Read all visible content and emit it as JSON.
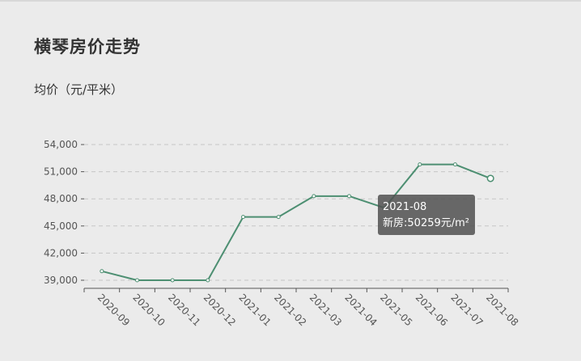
{
  "header": {
    "title": "横琴房价走势",
    "subtitle": "均价（元/平米）"
  },
  "tooltip": {
    "period": "2021-08",
    "series_label": "新房",
    "value_text": "50259",
    "unit": "元/m²"
  },
  "colors": {
    "line": "#4d8f72",
    "grid": "#c6c6c6",
    "axis": "#555555"
  },
  "chart_data": {
    "type": "line",
    "title": "横琴房价走势",
    "ylabel": "均价（元/平米）",
    "xlabel": "",
    "categories": [
      "2020-09",
      "2020-10",
      "2020-11",
      "2020-12",
      "2021-01",
      "2021-02",
      "2021-03",
      "2021-04",
      "2021-05",
      "2021-06",
      "2021-07",
      "2021-08"
    ],
    "series": [
      {
        "name": "新房",
        "values": [
          40000,
          39000,
          39000,
          39000,
          46000,
          46000,
          48300,
          48300,
          47000,
          51800,
          51800,
          50259
        ]
      }
    ],
    "yticks": [
      39000,
      42000,
      45000,
      48000,
      51000,
      54000
    ],
    "ytick_labels": [
      "39,000",
      "42,000",
      "45,000",
      "48,000",
      "51,000",
      "54,000"
    ],
    "ylim": [
      38000,
      54000
    ],
    "grid": true,
    "highlighted_index": 11
  }
}
